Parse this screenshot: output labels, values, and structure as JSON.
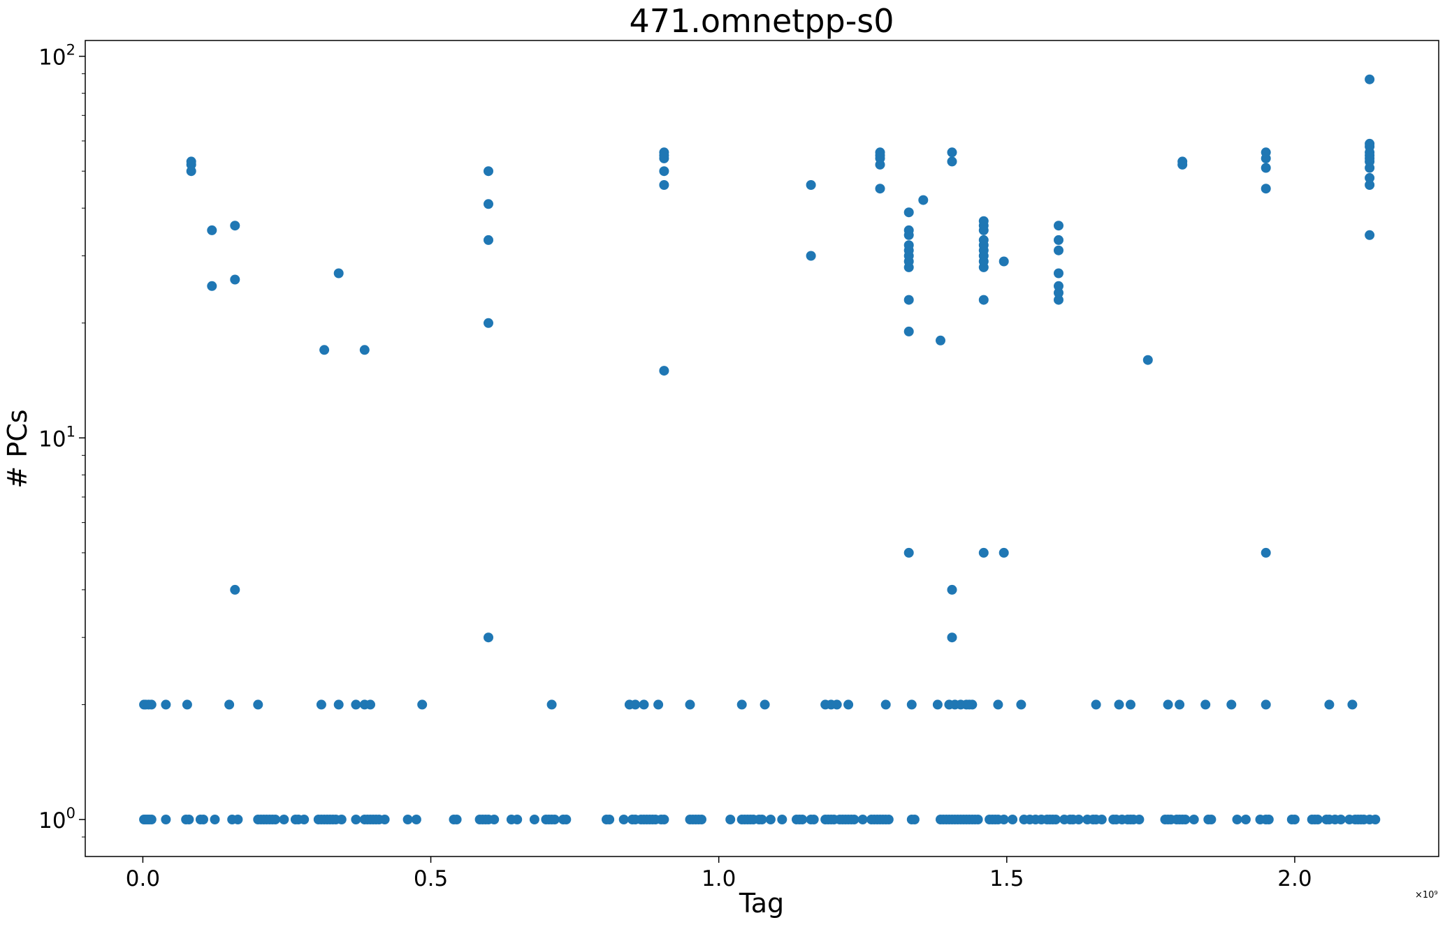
{
  "chart_data": {
    "type": "scatter",
    "title": "471.omnetpp-s0",
    "xlabel": "Tag",
    "ylabel": "# PCs",
    "x_offset_label": "×10⁹",
    "x_scale": "linear",
    "y_scale": "log",
    "xlim": [
      -100000000,
      2250000000
    ],
    "ylim": [
      0.8,
      110
    ],
    "grid": false,
    "legend": "none",
    "x_ticks": [
      {
        "value": 0,
        "label": "0.0"
      },
      {
        "value": 500000000,
        "label": "0.5"
      },
      {
        "value": 1000000000,
        "label": "1.0"
      },
      {
        "value": 1500000000,
        "label": "1.5"
      },
      {
        "value": 2000000000,
        "label": "2.0"
      }
    ],
    "y_ticks": [
      {
        "value": 1,
        "base": "10",
        "exp": "0"
      },
      {
        "value": 10,
        "base": "10",
        "exp": "1"
      },
      {
        "value": 100,
        "base": "10",
        "exp": "2"
      }
    ],
    "marker_color": "#1f77b4",
    "series": [
      {
        "points": [
          [
            0.002,
            1
          ],
          [
            0.005,
            1
          ],
          [
            0.008,
            1
          ],
          [
            0.011,
            1
          ],
          [
            0.015,
            1
          ],
          [
            0.04,
            1
          ],
          [
            0.075,
            1
          ],
          [
            0.08,
            1
          ],
          [
            0.1,
            1
          ],
          [
            0.105,
            1
          ],
          [
            0.125,
            1
          ],
          [
            0.155,
            1
          ],
          [
            0.165,
            1
          ],
          [
            0.2,
            1
          ],
          [
            0.205,
            1
          ],
          [
            0.21,
            1
          ],
          [
            0.215,
            1
          ],
          [
            0.22,
            1
          ],
          [
            0.225,
            1
          ],
          [
            0.23,
            1
          ],
          [
            0.245,
            1
          ],
          [
            0.265,
            1
          ],
          [
            0.27,
            1
          ],
          [
            0.28,
            1
          ],
          [
            0.305,
            1
          ],
          [
            0.31,
            1
          ],
          [
            0.315,
            1
          ],
          [
            0.32,
            1
          ],
          [
            0.325,
            1
          ],
          [
            0.33,
            1
          ],
          [
            0.335,
            1
          ],
          [
            0.345,
            1
          ],
          [
            0.37,
            1
          ],
          [
            0.385,
            1
          ],
          [
            0.39,
            1
          ],
          [
            0.395,
            1
          ],
          [
            0.4,
            1
          ],
          [
            0.405,
            1
          ],
          [
            0.41,
            1
          ],
          [
            0.42,
            1
          ],
          [
            0.46,
            1
          ],
          [
            0.475,
            1
          ],
          [
            0.54,
            1
          ],
          [
            0.545,
            1
          ],
          [
            0.585,
            1
          ],
          [
            0.59,
            1
          ],
          [
            0.595,
            1
          ],
          [
            0.6,
            1
          ],
          [
            0.61,
            1
          ],
          [
            0.64,
            1
          ],
          [
            0.65,
            1
          ],
          [
            0.68,
            1
          ],
          [
            0.7,
            1
          ],
          [
            0.705,
            1
          ],
          [
            0.71,
            1
          ],
          [
            0.715,
            1
          ],
          [
            0.73,
            1
          ],
          [
            0.735,
            1
          ],
          [
            0.805,
            1
          ],
          [
            0.81,
            1
          ],
          [
            0.835,
            1
          ],
          [
            0.85,
            1
          ],
          [
            0.855,
            1
          ],
          [
            0.865,
            1
          ],
          [
            0.87,
            1
          ],
          [
            0.875,
            1
          ],
          [
            0.88,
            1
          ],
          [
            0.885,
            1
          ],
          [
            0.89,
            1
          ],
          [
            0.9,
            1
          ],
          [
            0.905,
            1
          ],
          [
            0.95,
            1
          ],
          [
            0.955,
            1
          ],
          [
            0.96,
            1
          ],
          [
            0.965,
            1
          ],
          [
            0.97,
            1
          ],
          [
            1.02,
            1
          ],
          [
            1.04,
            1
          ],
          [
            1.045,
            1
          ],
          [
            1.05,
            1
          ],
          [
            1.055,
            1
          ],
          [
            1.06,
            1
          ],
          [
            1.07,
            1
          ],
          [
            1.075,
            1
          ],
          [
            1.09,
            1
          ],
          [
            1.11,
            1
          ],
          [
            1.135,
            1
          ],
          [
            1.14,
            1
          ],
          [
            1.145,
            1
          ],
          [
            1.16,
            1
          ],
          [
            1.165,
            1
          ],
          [
            1.185,
            1
          ],
          [
            1.19,
            1
          ],
          [
            1.195,
            1
          ],
          [
            1.2,
            1
          ],
          [
            1.21,
            1
          ],
          [
            1.215,
            1
          ],
          [
            1.22,
            1
          ],
          [
            1.225,
            1
          ],
          [
            1.23,
            1
          ],
          [
            1.235,
            1
          ],
          [
            1.25,
            1
          ],
          [
            1.265,
            1
          ],
          [
            1.27,
            1
          ],
          [
            1.275,
            1
          ],
          [
            1.28,
            1
          ],
          [
            1.285,
            1
          ],
          [
            1.29,
            1
          ],
          [
            1.295,
            1
          ],
          [
            1.335,
            1
          ],
          [
            1.34,
            1
          ],
          [
            1.385,
            1
          ],
          [
            1.39,
            1
          ],
          [
            1.395,
            1
          ],
          [
            1.4,
            1
          ],
          [
            1.405,
            1
          ],
          [
            1.41,
            1
          ],
          [
            1.415,
            1
          ],
          [
            1.42,
            1
          ],
          [
            1.425,
            1
          ],
          [
            1.43,
            1
          ],
          [
            1.435,
            1
          ],
          [
            1.44,
            1
          ],
          [
            1.445,
            1
          ],
          [
            1.45,
            1
          ],
          [
            1.47,
            1
          ],
          [
            1.475,
            1
          ],
          [
            1.48,
            1
          ],
          [
            1.485,
            1
          ],
          [
            1.495,
            1
          ],
          [
            1.51,
            1
          ],
          [
            1.53,
            1
          ],
          [
            1.54,
            1
          ],
          [
            1.55,
            1
          ],
          [
            1.56,
            1
          ],
          [
            1.57,
            1
          ],
          [
            1.575,
            1
          ],
          [
            1.58,
            1
          ],
          [
            1.585,
            1
          ],
          [
            1.6,
            1
          ],
          [
            1.61,
            1
          ],
          [
            1.615,
            1
          ],
          [
            1.625,
            1
          ],
          [
            1.64,
            1
          ],
          [
            1.65,
            1
          ],
          [
            1.655,
            1
          ],
          [
            1.665,
            1
          ],
          [
            1.685,
            1
          ],
          [
            1.69,
            1
          ],
          [
            1.7,
            1
          ],
          [
            1.71,
            1
          ],
          [
            1.715,
            1
          ],
          [
            1.72,
            1
          ],
          [
            1.73,
            1
          ],
          [
            1.775,
            1
          ],
          [
            1.78,
            1
          ],
          [
            1.785,
            1
          ],
          [
            1.795,
            1
          ],
          [
            1.8,
            1
          ],
          [
            1.805,
            1
          ],
          [
            1.81,
            1
          ],
          [
            1.825,
            1
          ],
          [
            1.85,
            1
          ],
          [
            1.855,
            1
          ],
          [
            1.9,
            1
          ],
          [
            1.915,
            1
          ],
          [
            1.94,
            1
          ],
          [
            1.95,
            1
          ],
          [
            1.955,
            1
          ],
          [
            1.995,
            1
          ],
          [
            2,
            1
          ],
          [
            2.03,
            1
          ],
          [
            2.035,
            1
          ],
          [
            2.04,
            1
          ],
          [
            2.055,
            1
          ],
          [
            2.06,
            1
          ],
          [
            2.07,
            1
          ],
          [
            2.08,
            1
          ],
          [
            2.095,
            1
          ],
          [
            2.105,
            1
          ],
          [
            2.11,
            1
          ],
          [
            2.115,
            1
          ],
          [
            2.12,
            1
          ],
          [
            2.13,
            1
          ],
          [
            2.14,
            1
          ],
          [
            0.002,
            2
          ],
          [
            0.005,
            2
          ],
          [
            0.01,
            2
          ],
          [
            0.015,
            2
          ],
          [
            0.04,
            2
          ],
          [
            0.077,
            2
          ],
          [
            0.15,
            2
          ],
          [
            0.2,
            2
          ],
          [
            0.31,
            2
          ],
          [
            0.34,
            2
          ],
          [
            0.37,
            2
          ],
          [
            0.385,
            2
          ],
          [
            0.395,
            2
          ],
          [
            0.485,
            2
          ],
          [
            0.71,
            2
          ],
          [
            0.845,
            2
          ],
          [
            0.855,
            2
          ],
          [
            0.87,
            2
          ],
          [
            0.895,
            2
          ],
          [
            0.95,
            2
          ],
          [
            1.04,
            2
          ],
          [
            1.08,
            2
          ],
          [
            1.185,
            2
          ],
          [
            1.195,
            2
          ],
          [
            1.205,
            2
          ],
          [
            1.225,
            2
          ],
          [
            1.29,
            2
          ],
          [
            1.335,
            2
          ],
          [
            1.38,
            2
          ],
          [
            1.4,
            2
          ],
          [
            1.41,
            2
          ],
          [
            1.42,
            2
          ],
          [
            1.43,
            2
          ],
          [
            1.435,
            2
          ],
          [
            1.44,
            2
          ],
          [
            1.485,
            2
          ],
          [
            1.525,
            2
          ],
          [
            1.655,
            2
          ],
          [
            1.695,
            2
          ],
          [
            1.715,
            2
          ],
          [
            1.78,
            2
          ],
          [
            1.8,
            2
          ],
          [
            1.845,
            2
          ],
          [
            1.89,
            2
          ],
          [
            1.95,
            2
          ],
          [
            2.06,
            2
          ],
          [
            2.1,
            2
          ],
          [
            0.084,
            50
          ],
          [
            0.084,
            52
          ],
          [
            0.084,
            53
          ],
          [
            0.12,
            25
          ],
          [
            0.12,
            35
          ],
          [
            0.16,
            4
          ],
          [
            0.16,
            26
          ],
          [
            0.16,
            36
          ],
          [
            0.315,
            17
          ],
          [
            0.34,
            27
          ],
          [
            0.385,
            17
          ],
          [
            0.6,
            3
          ],
          [
            0.6,
            20
          ],
          [
            0.6,
            33
          ],
          [
            0.6,
            41
          ],
          [
            0.6,
            50
          ],
          [
            0.905,
            15
          ],
          [
            0.905,
            46
          ],
          [
            0.905,
            50
          ],
          [
            0.905,
            54
          ],
          [
            0.905,
            55
          ],
          [
            0.905,
            56
          ],
          [
            1.16,
            30
          ],
          [
            1.16,
            46
          ],
          [
            1.28,
            45
          ],
          [
            1.28,
            52
          ],
          [
            1.28,
            54
          ],
          [
            1.28,
            55
          ],
          [
            1.28,
            56
          ],
          [
            1.33,
            5
          ],
          [
            1.33,
            19
          ],
          [
            1.33,
            23
          ],
          [
            1.33,
            28
          ],
          [
            1.33,
            29
          ],
          [
            1.33,
            30
          ],
          [
            1.33,
            31
          ],
          [
            1.33,
            32
          ],
          [
            1.33,
            34
          ],
          [
            1.33,
            35
          ],
          [
            1.33,
            39
          ],
          [
            1.355,
            42
          ],
          [
            1.385,
            18
          ],
          [
            1.405,
            3
          ],
          [
            1.405,
            4
          ],
          [
            1.405,
            53
          ],
          [
            1.405,
            56
          ],
          [
            1.46,
            5
          ],
          [
            1.46,
            23
          ],
          [
            1.46,
            28
          ],
          [
            1.46,
            29
          ],
          [
            1.46,
            30
          ],
          [
            1.46,
            31
          ],
          [
            1.46,
            32
          ],
          [
            1.46,
            33
          ],
          [
            1.46,
            35
          ],
          [
            1.46,
            36
          ],
          [
            1.46,
            37
          ],
          [
            1.495,
            5
          ],
          [
            1.495,
            29
          ],
          [
            1.59,
            23
          ],
          [
            1.59,
            24
          ],
          [
            1.59,
            25
          ],
          [
            1.59,
            27
          ],
          [
            1.59,
            31
          ],
          [
            1.59,
            33
          ],
          [
            1.59,
            36
          ],
          [
            1.745,
            16
          ],
          [
            1.805,
            52
          ],
          [
            1.805,
            53
          ],
          [
            1.95,
            5
          ],
          [
            1.95,
            45
          ],
          [
            1.95,
            51
          ],
          [
            1.95,
            54
          ],
          [
            1.95,
            56
          ],
          [
            2.13,
            34
          ],
          [
            2.13,
            46
          ],
          [
            2.13,
            48
          ],
          [
            2.13,
            51
          ],
          [
            2.13,
            53
          ],
          [
            2.13,
            54
          ],
          [
            2.13,
            55
          ],
          [
            2.13,
            56
          ],
          [
            2.13,
            58
          ],
          [
            2.13,
            59
          ],
          [
            2.13,
            87
          ]
        ]
      }
    ]
  }
}
